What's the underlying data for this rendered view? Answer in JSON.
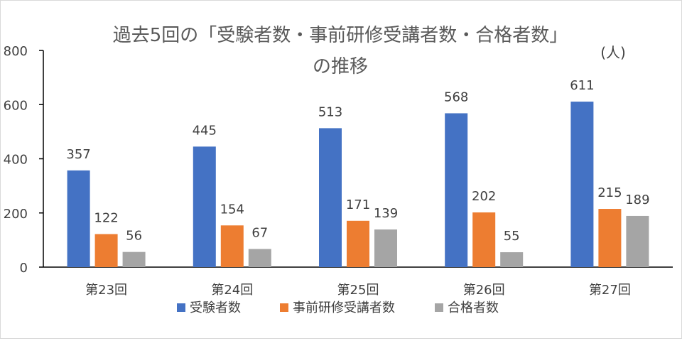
{
  "chart_data": {
    "type": "bar",
    "title_line1": "過去5回の「受験者数・事前研修受講者数・合格者数」",
    "title_line2": "の推移",
    "unit": "(人)",
    "categories": [
      "第23回",
      "第24回",
      "第25回",
      "第26回",
      "第27回"
    ],
    "series": [
      {
        "name": "受験者数",
        "color": "#4472c4",
        "values": [
          357,
          445,
          513,
          568,
          611
        ]
      },
      {
        "name": "事前研修受講者数",
        "color": "#ed7d31",
        "values": [
          122,
          154,
          171,
          202,
          215
        ]
      },
      {
        "name": "合格者数",
        "color": "#a5a5a5",
        "values": [
          56,
          67,
          139,
          55,
          189
        ]
      }
    ],
    "ylim": [
      0,
      800
    ],
    "yticks": [
      0,
      200,
      400,
      600,
      800
    ],
    "grid": false,
    "legend_position": "bottom"
  }
}
